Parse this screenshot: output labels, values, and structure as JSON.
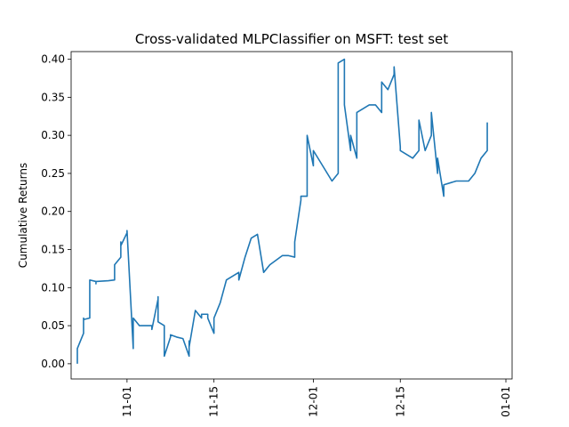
{
  "chart_data": {
    "type": "line",
    "title": "Cross-validated MLPClassifier on MSFT: test set",
    "xlabel": "",
    "ylabel": "Cumulative Returns",
    "x_ticks": [
      "11-01",
      "11-15",
      "12-01",
      "12-15",
      "01-01"
    ],
    "y_ticks": [
      "0.00",
      "0.05",
      "0.10",
      "0.15",
      "0.20",
      "0.25",
      "0.30",
      "0.35",
      "0.40"
    ],
    "ylim": [
      -0.02,
      0.41
    ],
    "xlim": [
      "2023-10-23",
      "2024-01-02"
    ],
    "grid": false,
    "series_color": "#1f77b4",
    "series": [
      {
        "x": [
          "2023-10-24",
          "2023-10-24",
          "2023-10-25",
          "2023-10-25",
          "2023-10-25",
          "2023-10-26",
          "2023-10-26",
          "2023-10-26",
          "2023-10-27",
          "2023-10-27",
          "2023-10-27",
          "2023-10-29",
          "2023-10-30",
          "2023-10-30",
          "2023-10-31",
          "2023-10-31",
          "2023-10-31",
          "2023-11-01",
          "2023-11-01",
          "2023-11-02",
          "2023-11-02",
          "2023-11-03",
          "2023-11-03",
          "2023-11-05",
          "2023-11-05",
          "2023-11-06",
          "2023-11-06",
          "2023-11-06",
          "2023-11-07",
          "2023-11-07",
          "2023-11-08",
          "2023-11-08",
          "2023-11-09",
          "2023-11-10",
          "2023-11-11",
          "2023-11-11",
          "2023-11-11",
          "2023-11-12",
          "2023-11-13",
          "2023-11-13",
          "2023-11-14",
          "2023-11-14",
          "2023-11-15",
          "2023-11-15",
          "2023-11-16",
          "2023-11-17",
          "2023-11-19",
          "2023-11-19",
          "2023-11-19",
          "2023-11-20",
          "2023-11-21",
          "2023-11-21",
          "2023-11-22",
          "2023-11-22",
          "2023-11-23",
          "2023-11-24",
          "2023-11-26",
          "2023-11-27",
          "2023-11-28",
          "2023-11-28",
          "2023-11-29",
          "2023-11-29",
          "2023-11-30",
          "2023-11-30",
          "2023-12-01",
          "2023-12-01",
          "2023-12-04",
          "2023-12-04",
          "2023-12-05",
          "2023-12-05",
          "2023-12-06",
          "2023-12-06",
          "2023-12-07",
          "2023-12-07",
          "2023-12-08",
          "2023-12-08",
          "2023-12-10",
          "2023-12-11",
          "2023-12-11",
          "2023-12-12",
          "2023-12-12",
          "2023-12-13",
          "2023-12-14",
          "2023-12-14",
          "2023-12-15",
          "2023-12-15",
          "2023-12-17",
          "2023-12-18",
          "2023-12-18",
          "2023-12-19",
          "2023-12-20",
          "2023-12-20",
          "2023-12-21",
          "2023-12-21",
          "2023-12-22",
          "2023-12-22",
          "2023-12-24",
          "2023-12-25",
          "2023-12-26",
          "2023-12-26",
          "2023-12-27",
          "2023-12-28",
          "2023-12-29",
          "2023-12-29",
          "2023-12-29"
        ],
        "values": [
          0.0,
          0.02,
          0.04,
          0.06,
          0.058,
          0.06,
          0.09,
          0.11,
          0.108,
          0.105,
          0.108,
          0.109,
          0.11,
          0.13,
          0.14,
          0.16,
          0.155,
          0.172,
          0.175,
          0.02,
          0.06,
          0.05,
          0.05,
          0.05,
          0.045,
          0.085,
          0.088,
          0.055,
          0.05,
          0.01,
          0.035,
          0.038,
          0.035,
          0.033,
          0.01,
          0.03,
          0.022,
          0.07,
          0.06,
          0.065,
          0.065,
          0.06,
          0.04,
          0.06,
          0.08,
          0.11,
          0.12,
          0.11,
          0.11,
          0.14,
          0.165,
          0.165,
          0.17,
          0.17,
          0.12,
          0.13,
          0.142,
          0.142,
          0.14,
          0.16,
          0.215,
          0.22,
          0.22,
          0.3,
          0.26,
          0.28,
          0.24,
          0.24,
          0.25,
          0.395,
          0.4,
          0.34,
          0.28,
          0.3,
          0.27,
          0.33,
          0.34,
          0.34,
          0.34,
          0.33,
          0.37,
          0.36,
          0.38,
          0.39,
          0.285,
          0.28,
          0.27,
          0.28,
          0.32,
          0.28,
          0.3,
          0.33,
          0.25,
          0.27,
          0.22,
          0.235,
          0.24,
          0.24,
          0.24,
          0.24,
          0.25,
          0.27,
          0.28,
          0.3,
          0.317
        ]
      }
    ]
  }
}
